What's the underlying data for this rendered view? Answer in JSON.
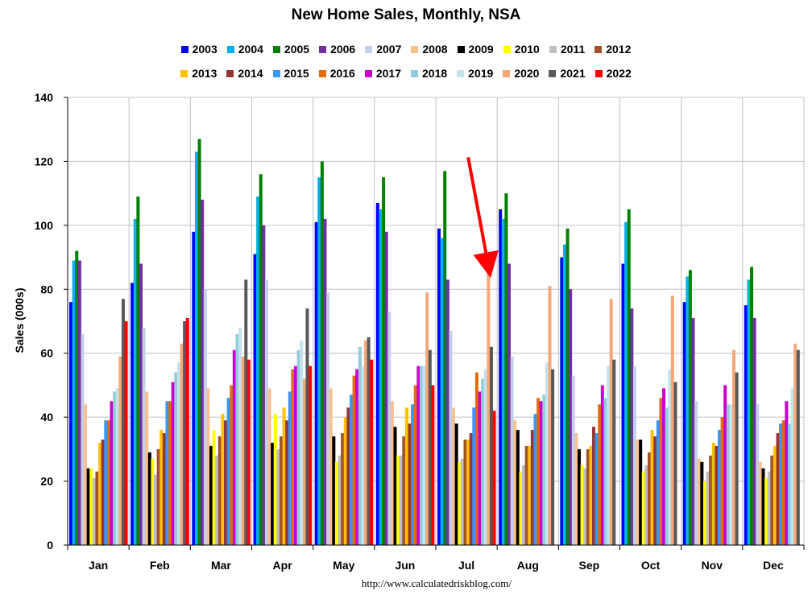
{
  "chart_data": {
    "type": "bar",
    "title": "New Home Sales, Monthly, NSA",
    "ylabel": "Sales (000s)",
    "xlabel": "",
    "ylim": [
      0,
      140
    ],
    "yticks": [
      0,
      20,
      40,
      60,
      80,
      100,
      120,
      140
    ],
    "grid": true,
    "legend_position": "top",
    "source_text": "http://www.calculatedriskblog.com/",
    "annotation": {
      "type": "arrow",
      "color": "#ff0000",
      "points_to": {
        "category": "Jul",
        "series": "2020",
        "value": 85
      }
    },
    "categories": [
      "Jan",
      "Feb",
      "Mar",
      "Apr",
      "May",
      "Jun",
      "Jul",
      "Aug",
      "Sep",
      "Oct",
      "Nov",
      "Dec"
    ],
    "series": [
      {
        "name": "2003",
        "color": "#0000ff",
        "values": [
          76,
          82,
          98,
          91,
          101,
          107,
          99,
          105,
          90,
          88,
          76,
          75
        ]
      },
      {
        "name": "2004",
        "color": "#00b0f0",
        "values": [
          89,
          102,
          123,
          109,
          115,
          105,
          96,
          102,
          94,
          101,
          84,
          83
        ]
      },
      {
        "name": "2005",
        "color": "#008000",
        "values": [
          92,
          109,
          127,
          116,
          120,
          115,
          117,
          110,
          99,
          105,
          86,
          87
        ]
      },
      {
        "name": "2006",
        "color": "#7030a0",
        "values": [
          89,
          88,
          108,
          100,
          102,
          98,
          83,
          88,
          80,
          74,
          71,
          71
        ]
      },
      {
        "name": "2007",
        "color": "#c5d0e8",
        "values": [
          66,
          68,
          80,
          83,
          79,
          73,
          67,
          59,
          53,
          56,
          45,
          44
        ]
      },
      {
        "name": "2008",
        "color": "#fac090",
        "values": [
          44,
          48,
          49,
          49,
          49,
          45,
          43,
          39,
          35,
          33,
          27,
          26
        ]
      },
      {
        "name": "2009",
        "color": "#000000",
        "values": [
          24,
          29,
          31,
          32,
          34,
          37,
          38,
          36,
          30,
          33,
          26,
          24
        ]
      },
      {
        "name": "2010",
        "color": "#ffff00",
        "values": [
          24,
          27,
          36,
          41,
          26,
          28,
          26,
          23,
          25,
          23,
          20,
          21
        ]
      },
      {
        "name": "2011",
        "color": "#bfbfbf",
        "values": [
          21,
          22,
          28,
          30,
          28,
          28,
          27,
          25,
          24,
          25,
          23,
          23
        ]
      },
      {
        "name": "2012",
        "color": "#a0522d",
        "values": [
          23,
          30,
          34,
          34,
          35,
          34,
          33,
          31,
          30,
          29,
          28,
          28
        ]
      },
      {
        "name": "2013",
        "color": "#ffc000",
        "values": [
          32,
          36,
          41,
          43,
          40,
          43,
          33,
          31,
          31,
          36,
          32,
          31
        ]
      },
      {
        "name": "2014",
        "color": "#953735",
        "values": [
          33,
          35,
          39,
          39,
          43,
          38,
          35,
          36,
          37,
          34,
          31,
          35
        ]
      },
      {
        "name": "2015",
        "color": "#3399ff",
        "values": [
          39,
          45,
          46,
          48,
          47,
          44,
          43,
          41,
          35,
          39,
          36,
          38
        ]
      },
      {
        "name": "2016",
        "color": "#e36c09",
        "values": [
          39,
          45,
          50,
          55,
          53,
          50,
          54,
          46,
          44,
          46,
          40,
          39
        ]
      },
      {
        "name": "2017",
        "color": "#cc00cc",
        "values": [
          45,
          51,
          61,
          56,
          55,
          56,
          48,
          45,
          50,
          49,
          50,
          45
        ]
      },
      {
        "name": "2018",
        "color": "#92cddc",
        "values": [
          48,
          54,
          66,
          61,
          62,
          56,
          52,
          47,
          46,
          43,
          44,
          38
        ]
      },
      {
        "name": "2019",
        "color": "#c6e2ec",
        "values": [
          49,
          57,
          68,
          64,
          56,
          56,
          55,
          57,
          56,
          55,
          44,
          49
        ]
      },
      {
        "name": "2020",
        "color": "#f4a878",
        "values": [
          59,
          63,
          59,
          52,
          64,
          79,
          85,
          81,
          77,
          78,
          61,
          63
        ]
      },
      {
        "name": "2021",
        "color": "#595959",
        "values": [
          77,
          70,
          83,
          74,
          65,
          61,
          62,
          55,
          58,
          51,
          54,
          61
        ]
      },
      {
        "name": "2022",
        "color": "#ff0000",
        "values": [
          70,
          71,
          58,
          56,
          58,
          50,
          42,
          null,
          null,
          null,
          null,
          null
        ]
      }
    ]
  }
}
